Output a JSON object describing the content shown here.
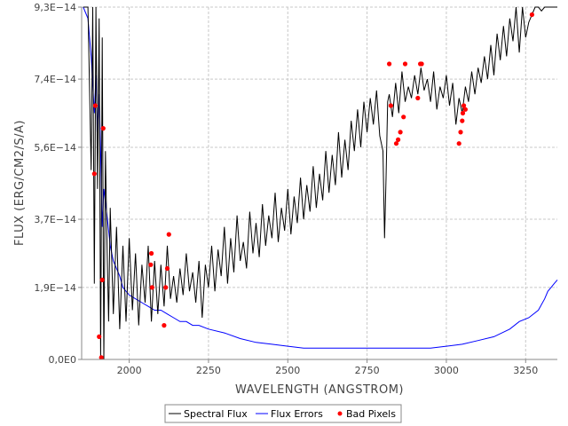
{
  "chart_data": {
    "type": "line",
    "xlabel": "WAVELENGTH (ANGSTROM)",
    "ylabel": "FLUX (ERG/CM2/S/A)",
    "xlim": [
      1850,
      3350
    ],
    "ylim": [
      0,
      9.3e-14
    ],
    "grid": true,
    "legend_position": "bottom-center",
    "x_ticks": [
      {
        "value": 2000,
        "label": "2000"
      },
      {
        "value": 2250,
        "label": "2250"
      },
      {
        "value": 2500,
        "label": "2500"
      },
      {
        "value": 2750,
        "label": "2750"
      },
      {
        "value": 3000,
        "label": "3000"
      },
      {
        "value": 3250,
        "label": "3250"
      }
    ],
    "y_ticks": [
      {
        "value": 0,
        "label": "0,0E0"
      },
      {
        "value": 1.9e-14,
        "label": "1,9E−14"
      },
      {
        "value": 3.7e-14,
        "label": "3,7E−14"
      },
      {
        "value": 5.6e-14,
        "label": "5,6E−14"
      },
      {
        "value": 7.4e-14,
        "label": "7,4E−14"
      },
      {
        "value": 9.3e-14,
        "label": "9,3E−14"
      }
    ],
    "colors": {
      "flux": "#000000",
      "errors": "#0000ff",
      "bad": "#ff0000"
    },
    "series": [
      {
        "name": "Spectral Flux",
        "x": [
          1855,
          1870,
          1880,
          1885,
          1890,
          1895,
          1900,
          1905,
          1910,
          1915,
          1920,
          1925,
          1930,
          1935,
          1940,
          1950,
          1960,
          1970,
          1980,
          1990,
          2000,
          2010,
          2020,
          2030,
          2040,
          2050,
          2060,
          2070,
          2080,
          2090,
          2100,
          2110,
          2120,
          2130,
          2140,
          2150,
          2160,
          2170,
          2180,
          2190,
          2200,
          2210,
          2220,
          2230,
          2240,
          2250,
          2260,
          2270,
          2280,
          2290,
          2300,
          2310,
          2320,
          2330,
          2340,
          2350,
          2360,
          2370,
          2380,
          2390,
          2400,
          2410,
          2420,
          2430,
          2440,
          2450,
          2460,
          2470,
          2480,
          2490,
          2500,
          2510,
          2520,
          2530,
          2540,
          2550,
          2560,
          2570,
          2580,
          2590,
          2600,
          2610,
          2620,
          2630,
          2640,
          2650,
          2660,
          2670,
          2680,
          2690,
          2700,
          2710,
          2720,
          2730,
          2740,
          2750,
          2760,
          2770,
          2780,
          2790,
          2800,
          2805,
          2810,
          2815,
          2820,
          2830,
          2840,
          2850,
          2860,
          2870,
          2880,
          2890,
          2900,
          2910,
          2920,
          2930,
          2940,
          2950,
          2960,
          2970,
          2980,
          2990,
          3000,
          3010,
          3020,
          3030,
          3040,
          3050,
          3060,
          3070,
          3080,
          3090,
          3100,
          3110,
          3120,
          3130,
          3140,
          3150,
          3160,
          3170,
          3180,
          3190,
          3200,
          3210,
          3220,
          3230,
          3240,
          3250,
          3260,
          3270,
          3280,
          3290,
          3300,
          3310,
          3320,
          3330,
          3340,
          3350
        ],
        "y": [
          9.3e-14,
          9.3e-14,
          5e-14,
          9.3e-14,
          2e-14,
          9.3e-14,
          4.5e-14,
          9e-14,
          0.0,
          8.5e-14,
          0.0,
          5.5e-14,
          3e-14,
          1e-14,
          4e-14,
          1.2e-14,
          3.5e-14,
          8e-15,
          3e-14,
          1e-14,
          3.2e-14,
          1.3e-14,
          2.8e-14,
          9e-15,
          2.5e-14,
          1.5e-14,
          3e-14,
          1e-14,
          2.6e-14,
          1.2e-14,
          2.5e-14,
          1.4e-14,
          3e-14,
          1.6e-14,
          2.2e-14,
          1.5e-14,
          2.4e-14,
          1.7e-14,
          2.8e-14,
          1.8e-14,
          2.3e-14,
          1.5e-14,
          2.6e-14,
          1.1e-14,
          2.5e-14,
          1.9e-14,
          3e-14,
          1.8e-14,
          2.9e-14,
          2.2e-14,
          3.5e-14,
          2e-14,
          3.2e-14,
          2.3e-14,
          3.8e-14,
          2.6e-14,
          3.1e-14,
          2.4e-14,
          3.9e-14,
          2.8e-14,
          3.6e-14,
          2.7e-14,
          4.1e-14,
          3e-14,
          3.8e-14,
          3.2e-14,
          4.4e-14,
          3.1e-14,
          4e-14,
          3.4e-14,
          4.5e-14,
          3.3e-14,
          4.3e-14,
          3.6e-14,
          4.8e-14,
          3.7e-14,
          4.6e-14,
          3.9e-14,
          5.1e-14,
          4e-14,
          4.9e-14,
          4.2e-14,
          5.5e-14,
          4.4e-14,
          5.4e-14,
          4.6e-14,
          6e-14,
          4.8e-14,
          5.8e-14,
          5e-14,
          6.3e-14,
          5.5e-14,
          6.6e-14,
          5.6e-14,
          6.8e-14,
          6e-14,
          6.9e-14,
          6.2e-14,
          7.1e-14,
          5.9e-14,
          5.5e-14,
          3.2e-14,
          4.8e-14,
          6.8e-14,
          7e-14,
          6.4e-14,
          7.3e-14,
          6.5e-14,
          7.6e-14,
          6.8e-14,
          7.2e-14,
          6.9e-14,
          7.5e-14,
          7e-14,
          7.7e-14,
          7.1e-14,
          7.4e-14,
          6.8e-14,
          7.6e-14,
          6.6e-14,
          7.2e-14,
          6.9e-14,
          7.5e-14,
          6.7e-14,
          7.3e-14,
          6.2e-14,
          6.9e-14,
          6.5e-14,
          7.2e-14,
          6.8e-14,
          7.6e-14,
          7e-14,
          7.7e-14,
          7.3e-14,
          8e-14,
          7.4e-14,
          8.3e-14,
          7.5e-14,
          8.6e-14,
          7.9e-14,
          8.8e-14,
          8e-14,
          9e-14,
          8.4e-14,
          9.3e-14,
          8.1e-14,
          9.3e-14,
          8.5e-14,
          8.9e-14,
          9.1e-14,
          9.3e-14,
          9.3e-14,
          9.2e-14,
          9.3e-14,
          9.3e-14,
          9.3e-14,
          9.3e-14,
          9.3e-14
        ]
      },
      {
        "name": "Flux Errors",
        "x": [
          1855,
          1870,
          1880,
          1890,
          1895,
          1900,
          1905,
          1910,
          1915,
          1920,
          1930,
          1940,
          1950,
          1960,
          1970,
          1980,
          1990,
          2000,
          2020,
          2040,
          2060,
          2080,
          2100,
          2120,
          2140,
          2160,
          2180,
          2200,
          2220,
          2250,
          2300,
          2350,
          2400,
          2450,
          2500,
          2550,
          2600,
          2650,
          2700,
          2750,
          2800,
          2850,
          2900,
          2950,
          3000,
          3050,
          3100,
          3150,
          3200,
          3230,
          3260,
          3290,
          3310,
          3320,
          3330,
          3340,
          3350
        ],
        "y": [
          9.3e-14,
          9e-14,
          8e-14,
          6.5e-14,
          7.5e-14,
          6e-14,
          7e-14,
          5.5e-14,
          3.5e-14,
          4.5e-14,
          3.8e-14,
          3e-14,
          2.6e-14,
          2.4e-14,
          2.2e-14,
          1.9e-14,
          1.8e-14,
          1.7e-14,
          1.6e-14,
          1.5e-14,
          1.4e-14,
          1.3e-14,
          1.3e-14,
          1.2e-14,
          1.1e-14,
          1e-14,
          1e-14,
          9e-15,
          9e-15,
          8e-15,
          7e-15,
          5.5e-15,
          4.5e-15,
          4e-15,
          3.5e-15,
          3e-15,
          3e-15,
          3e-15,
          3e-15,
          3e-15,
          3e-15,
          3e-15,
          3e-15,
          3e-15,
          3.5e-15,
          4e-15,
          5e-15,
          6e-15,
          8e-15,
          1e-14,
          1.1e-14,
          1.3e-14,
          1.6e-14,
          1.8e-14,
          1.9e-14,
          2e-14,
          2.1e-14
        ]
      },
      {
        "name": "Bad Pixels",
        "x": [
          1890,
          1893,
          1905,
          1912,
          1915,
          1918,
          2068,
          2070,
          2072,
          2110,
          2115,
          2120,
          2125,
          2820,
          2825,
          2842,
          2848,
          2855,
          2865,
          2870,
          2910,
          2918,
          2922,
          3040,
          3045,
          3050,
          3052,
          3055,
          3060,
          3270
        ],
        "y": [
          4.9e-14,
          6.7e-14,
          6e-15,
          5e-16,
          2.1e-14,
          6.1e-14,
          2.5e-14,
          2.8e-14,
          1.9e-14,
          9e-15,
          1.9e-14,
          2.4e-14,
          3.3e-14,
          7.8e-14,
          6.7e-14,
          5.7e-14,
          5.8e-14,
          6e-14,
          6.4e-14,
          7.8e-14,
          6.9e-14,
          7.8e-14,
          7.8e-14,
          5.7e-14,
          6e-14,
          6.3e-14,
          6.5e-14,
          6.7e-14,
          6.6e-14,
          9.1e-14
        ]
      }
    ]
  }
}
